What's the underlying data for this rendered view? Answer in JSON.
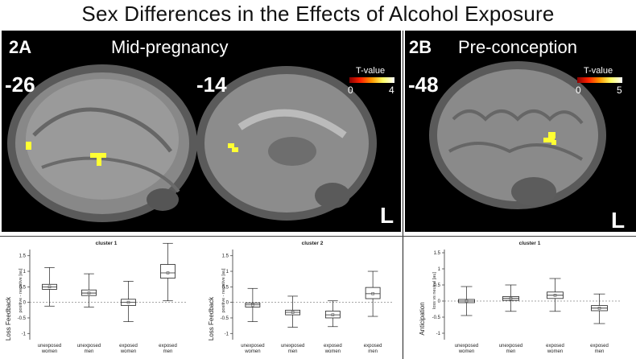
{
  "figure": {
    "title": "Sex Differences in the Effects of Alcohol Exposure"
  },
  "panel_a": {
    "label": "2A",
    "condition": "Mid-pregnancy",
    "slice_left": "-26",
    "slice_right": "-14",
    "orientation": "L",
    "tvalue": {
      "label": "T-value",
      "min": "0",
      "max": "4"
    }
  },
  "panel_b": {
    "label": "2B",
    "condition": "Pre-conception",
    "slice": "-48",
    "orientation": "L",
    "tvalue": {
      "label": "T-value",
      "min": "0",
      "max": "5"
    }
  },
  "chart_data": [
    {
      "type": "boxplot",
      "title": "cluster 1",
      "ylabel_outer": "Loss Feedback",
      "ylabel_inner": "positive - negative [au]",
      "ylim": [
        -1.2,
        1.7
      ],
      "yticks": [
        "-1",
        "-0.5",
        "0",
        "0.5",
        "1",
        "1.5"
      ],
      "ytick_values": [
        -1,
        -0.5,
        0,
        0.5,
        1,
        1.5
      ],
      "categories": [
        [
          "unexposed",
          "women"
        ],
        [
          "unexposed",
          "men"
        ],
        [
          "exposed",
          "women"
        ],
        [
          "exposed",
          "men"
        ]
      ],
      "boxes": [
        {
          "min": -0.12,
          "q1": 0.42,
          "median": 0.5,
          "q3": 0.58,
          "max": 1.12
        },
        {
          "min": -0.15,
          "q1": 0.22,
          "median": 0.3,
          "q3": 0.4,
          "max": 0.92
        },
        {
          "min": -0.62,
          "q1": -0.1,
          "median": 0.0,
          "q3": 0.1,
          "max": 0.68
        },
        {
          "min": 0.05,
          "q1": 0.78,
          "median": 0.95,
          "q3": 1.22,
          "max": 1.9
        }
      ]
    },
    {
      "type": "boxplot",
      "title": "cluster 2",
      "ylabel_outer": "Loss Feedback",
      "ylabel_inner": "positive - negative [au]",
      "ylim": [
        -1.2,
        1.7
      ],
      "yticks": [
        "-1",
        "-0.5",
        "0",
        "0.5",
        "1",
        "1.5"
      ],
      "ytick_values": [
        -1,
        -0.5,
        0,
        0.5,
        1,
        1.5
      ],
      "categories": [
        [
          "unexposed",
          "women"
        ],
        [
          "unexposed",
          "men"
        ],
        [
          "exposed",
          "women"
        ],
        [
          "exposed",
          "men"
        ]
      ],
      "boxes": [
        {
          "min": -0.62,
          "q1": -0.15,
          "median": -0.08,
          "q3": -0.02,
          "max": 0.45
        },
        {
          "min": -0.8,
          "q1": -0.4,
          "median": -0.32,
          "q3": -0.25,
          "max": 0.2
        },
        {
          "min": -0.78,
          "q1": -0.5,
          "median": -0.4,
          "q3": -0.28,
          "max": 0.05
        },
        {
          "min": -0.45,
          "q1": 0.12,
          "median": 0.28,
          "q3": 0.48,
          "max": 1.0
        }
      ]
    },
    {
      "type": "boxplot",
      "title": "cluster 1",
      "ylabel_outer": "Anticipation",
      "ylabel_inner": "loss vs neutral [au]",
      "ylim": [
        -1.2,
        1.6
      ],
      "yticks": [
        "-1",
        "-0.5",
        "0",
        "0.5",
        "1",
        "1.5"
      ],
      "ytick_values": [
        -1,
        -0.5,
        0,
        0.5,
        1,
        1.5
      ],
      "categories": [
        [
          "unexposed",
          "women"
        ],
        [
          "unexposed",
          "men"
        ],
        [
          "exposed",
          "women"
        ],
        [
          "exposed",
          "men"
        ]
      ],
      "boxes": [
        {
          "min": -0.45,
          "q1": -0.05,
          "median": 0.0,
          "q3": 0.05,
          "max": 0.45
        },
        {
          "min": -0.32,
          "q1": 0.02,
          "median": 0.08,
          "q3": 0.14,
          "max": 0.5
        },
        {
          "min": -0.32,
          "q1": 0.08,
          "median": 0.18,
          "q3": 0.28,
          "max": 0.7
        },
        {
          "min": -0.7,
          "q1": -0.3,
          "median": -0.22,
          "q3": -0.14,
          "max": 0.22
        }
      ]
    }
  ]
}
